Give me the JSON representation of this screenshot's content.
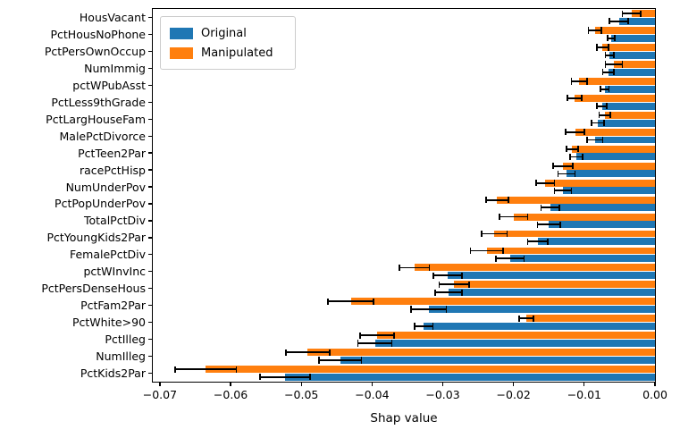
{
  "chart_data": {
    "type": "bar",
    "orientation": "horizontal",
    "title": "",
    "xlabel": "Shap value",
    "ylabel": "",
    "grid": false,
    "legend_position": "upper-left",
    "xlim": [
      -0.071,
      0
    ],
    "xticks": [
      -0.07,
      -0.06,
      -0.05,
      -0.04,
      -0.03,
      -0.02,
      -0.01,
      0.0
    ],
    "xtick_labels": [
      "−0.07",
      "−0.06",
      "−0.05",
      "−0.04",
      "−0.03",
      "−0.02",
      "−0.01",
      "0.00"
    ],
    "categories": [
      "HousVacant",
      "PctHousNoPhone",
      "PctPersOwnOccup",
      "NumImmig",
      "pctWPubAsst",
      "PctLess9thGrade",
      "PctLargHouseFam",
      "MalePctDivorce",
      "PctTeen2Par",
      "racePctHisp",
      "NumUnderPov",
      "PctPopUnderPov",
      "TotalPctDiv",
      "PctYoungKids2Par",
      "FemalePctDiv",
      "pctWInvInc",
      "PctPersDenseHous",
      "PctFam2Par",
      "PctWhite>90",
      "PctIlleg",
      "NumIlleg",
      "PctKids2Par"
    ],
    "series": [
      {
        "name": "Original",
        "color": "#1f77b4",
        "values": [
          -0.0051,
          -0.0062,
          -0.0064,
          -0.0066,
          -0.0071,
          -0.0075,
          -0.0081,
          -0.0085,
          -0.0111,
          -0.0125,
          -0.013,
          -0.0148,
          -0.015,
          -0.0166,
          -0.0205,
          -0.0293,
          -0.0292,
          -0.032,
          -0.0327,
          -0.0396,
          -0.0445,
          -0.0523
        ],
        "errors": [
          0.0013,
          0.0005,
          0.0006,
          0.0008,
          0.0006,
          0.0007,
          0.0009,
          0.0011,
          0.0009,
          0.0012,
          0.0012,
          0.0013,
          0.0016,
          0.0014,
          0.002,
          0.002,
          0.0019,
          0.0025,
          0.0013,
          0.0024,
          0.003,
          0.0035
        ]
      },
      {
        "name": "Manipulated",
        "color": "#ff7f0e",
        "values": [
          -0.0033,
          -0.0085,
          -0.0074,
          -0.0058,
          -0.0107,
          -0.0114,
          -0.0071,
          -0.0113,
          -0.0117,
          -0.013,
          -0.0155,
          -0.0223,
          -0.02,
          -0.0227,
          -0.0238,
          -0.034,
          -0.0284,
          -0.043,
          -0.0182,
          -0.0393,
          -0.0491,
          -0.0635
        ],
        "errors": [
          0.0013,
          0.0009,
          0.0008,
          0.0012,
          0.0011,
          0.001,
          0.0008,
          0.0013,
          0.0008,
          0.0014,
          0.0013,
          0.0016,
          0.002,
          0.0018,
          0.0023,
          0.0021,
          0.0021,
          0.0032,
          0.001,
          0.0024,
          0.0031,
          0.0043
        ]
      }
    ],
    "error_bar_color": "#000000"
  }
}
